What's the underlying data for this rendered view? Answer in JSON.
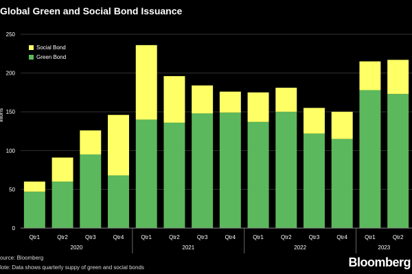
{
  "page": {
    "title": "Global Green and Social Bond Issuance",
    "source": "ource: Bloomberg",
    "note": "lote: Data shows quarterly suppy of green and social bonds",
    "brand": "Bloomberg"
  },
  "colors": {
    "background": "#000000",
    "social_bond": "#ffff66",
    "green_bond": "#5cb85c",
    "grid": "#333333",
    "axis_text": "#ffffff"
  },
  "chart_data": {
    "type": "bar",
    "stacked": true,
    "title": "Global Green and Social Bond Issuance",
    "ylabel": "illions",
    "ylim": [
      0,
      250
    ],
    "yticks": [
      0,
      50,
      100,
      150,
      200,
      250
    ],
    "grid": true,
    "legend_position": "top-left",
    "categories": [
      "Qtr1",
      "Qtr2",
      "Qtr3",
      "Qtr4",
      "Qtr1",
      "Qtr2",
      "Qtr3",
      "Qtr4",
      "Qtr1",
      "Qtr2",
      "Qtr3",
      "Qtr4",
      "Qtr1",
      "Qtr2"
    ],
    "groups": [
      {
        "label": "2020",
        "count": 4
      },
      {
        "label": "2021",
        "count": 4
      },
      {
        "label": "2022",
        "count": 4
      },
      {
        "label": "2023",
        "count": 2
      }
    ],
    "series": [
      {
        "name": "Green Bond",
        "color": "#5cb85c",
        "values": [
          47,
          60,
          95,
          68,
          140,
          136,
          148,
          149,
          137,
          150,
          122,
          115,
          178,
          173
        ]
      },
      {
        "name": "Social Bond",
        "color": "#ffff66",
        "values": [
          13,
          31,
          31,
          78,
          96,
          60,
          36,
          27,
          38,
          31,
          33,
          35,
          37,
          44
        ]
      }
    ],
    "legend_order": [
      "Social Bond",
      "Green Bond"
    ]
  }
}
